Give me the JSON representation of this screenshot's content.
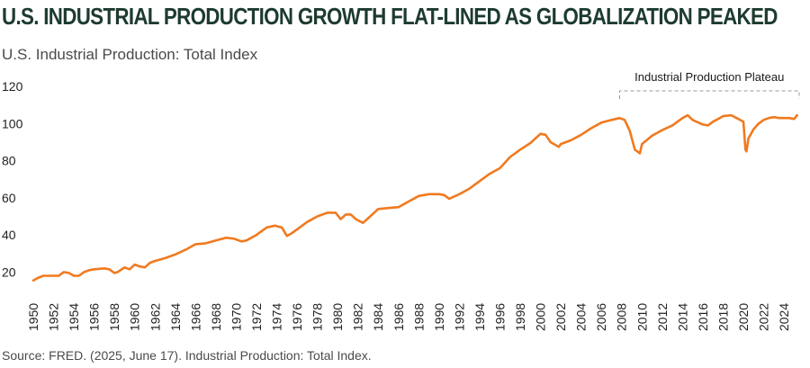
{
  "title": "U.S. INDUSTRIAL PRODUCTION GROWTH FLAT-LINED AS GLOBALIZATION PEAKED",
  "subtitle": "U.S. Industrial Production: Total Index",
  "source": "Source: FRED. (2025, June 17). Industrial Production: Total Index.",
  "colors": {
    "line": "#f07a1f",
    "annotation": "#9a9a9a"
  },
  "chart_data": {
    "type": "line",
    "title": "U.S. Industrial Production: Total Index",
    "xlabel": "",
    "ylabel": "",
    "xlim": [
      1950,
      2025.5
    ],
    "ylim": [
      10,
      122
    ],
    "yticks": [
      20,
      40,
      60,
      80,
      100,
      120
    ],
    "xticks": [
      "1950",
      "1952",
      "1954",
      "1956",
      "1958",
      "1960",
      "1962",
      "1964",
      "1966",
      "1968",
      "1970",
      "1972",
      "1974",
      "1976",
      "1978",
      "1980",
      "1982",
      "1984",
      "1986",
      "1988",
      "1990",
      "1992",
      "1994",
      "1996",
      "1998",
      "2000",
      "2002",
      "2004",
      "2006",
      "2008",
      "2010",
      "2012",
      "2014",
      "2016",
      "2018",
      "2020",
      "2022",
      "2024"
    ],
    "grid": false,
    "legend": "none",
    "annotation": {
      "label": "Industrial Production Plateau",
      "x_start": 2007.8,
      "x_end": 2025.5
    },
    "series": [
      {
        "name": "Industrial Production: Total Index",
        "x": [
          1950,
          1950.5,
          1951,
          1952,
          1952.5,
          1953,
          1953.5,
          1954,
          1954.5,
          1955,
          1955.5,
          1956,
          1957,
          1957.5,
          1958,
          1958.3,
          1959,
          1959.5,
          1960,
          1960.5,
          1961,
          1961.5,
          1962,
          1963,
          1964,
          1965,
          1966,
          1967,
          1968,
          1969,
          1969.8,
          1970.5,
          1971,
          1972,
          1973,
          1973.8,
          1974.5,
          1975,
          1975.5,
          1976,
          1977,
          1978,
          1979,
          1979.8,
          1980.3,
          1980.8,
          1981.3,
          1981.8,
          1982.5,
          1983,
          1984,
          1985,
          1986,
          1987,
          1988,
          1989,
          1990,
          1990.5,
          1991,
          1992,
          1993,
          1994,
          1995,
          1996,
          1997,
          1998,
          1999,
          2000,
          2000.5,
          2001,
          2001.8,
          2002,
          2003,
          2004,
          2005,
          2006,
          2007,
          2007.8,
          2008.3,
          2008.8,
          2009.3,
          2009.8,
          2010,
          2011,
          2012,
          2013,
          2014,
          2014.5,
          2015,
          2016,
          2016.5,
          2017,
          2018,
          2018.8,
          2019.5,
          2020,
          2020.2,
          2020.3,
          2020.5,
          2020.8,
          2021,
          2021.5,
          2022,
          2022.5,
          2023,
          2023.5,
          2024,
          2024.5,
          2025,
          2025.3
        ],
        "values": [
          15.5,
          17,
          18,
          18,
          18,
          20,
          19.5,
          18,
          18,
          20,
          21,
          21.5,
          22,
          21.5,
          19.5,
          20,
          22.5,
          21.5,
          24,
          23,
          22.5,
          25,
          26,
          27.5,
          29.5,
          32,
          35,
          35.5,
          37,
          38.5,
          38,
          36.5,
          37,
          40,
          44,
          45,
          44,
          39.5,
          41,
          43,
          47,
          50,
          52,
          52,
          48.5,
          51,
          51,
          48.5,
          46.5,
          49,
          54,
          54.5,
          55,
          58,
          61,
          62,
          62,
          61.5,
          59.5,
          62,
          65,
          69,
          73,
          76,
          82,
          86,
          89.5,
          94.5,
          94,
          90,
          87.5,
          89,
          91,
          94,
          97.5,
          100.5,
          102,
          103,
          102,
          96,
          86,
          84,
          89,
          93.5,
          96.5,
          99,
          103,
          104.5,
          102,
          99.5,
          99,
          101,
          104,
          104.5,
          102.5,
          101,
          86,
          85,
          92,
          95,
          97,
          100,
          102,
          103,
          103.5,
          103,
          103,
          103,
          102.5,
          104.5
        ]
      }
    ]
  }
}
